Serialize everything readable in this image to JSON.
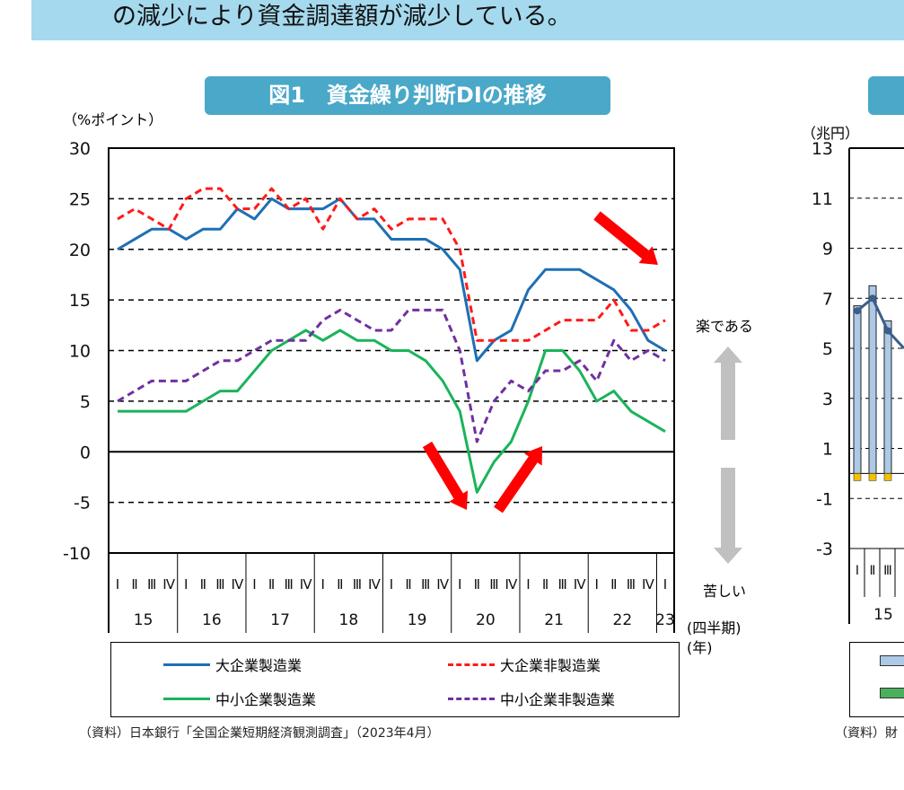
{
  "banner": {
    "text": "の減少により資金調達額が減少している。"
  },
  "chart_data": [
    {
      "type": "line",
      "title": "図1　資金繰り判断DIの推移",
      "ylabel": "（%ポイント）",
      "ylim": [
        -10,
        30
      ],
      "yticks": [
        30,
        25,
        20,
        15,
        10,
        5,
        0,
        -5,
        -10
      ],
      "grid": "horizontal dashed",
      "quarter_labels": [
        "Ⅰ",
        "Ⅱ",
        "Ⅲ",
        "Ⅳ"
      ],
      "year_labels": [
        "15",
        "16",
        "17",
        "18",
        "19",
        "20",
        "21",
        "22",
        "23"
      ],
      "xlabel_quarter": "(四半期)",
      "xlabel_year": "(年)",
      "annotation_up": "楽である",
      "annotation_down": "苦しい",
      "legend_position": "bottom",
      "series": [
        {
          "name": "大企業製造業",
          "color": "#1f6fb5",
          "style": "solid",
          "values": [
            20,
            21,
            22,
            22,
            21,
            22,
            22,
            24,
            23,
            25,
            24,
            24,
            24,
            25,
            23,
            23,
            21,
            21,
            21,
            20,
            18,
            9,
            11,
            12,
            16,
            18,
            18,
            18,
            17,
            16,
            14,
            11,
            10
          ]
        },
        {
          "name": "大企業非製造業",
          "color": "#ff1a1a",
          "style": "dashed",
          "values": [
            23,
            24,
            23,
            22,
            25,
            26,
            26,
            24,
            24,
            26,
            24,
            25,
            22,
            25,
            23,
            24,
            22,
            23,
            23,
            23,
            20,
            11,
            11,
            11,
            11,
            12,
            13,
            13,
            13,
            15,
            12,
            12,
            13
          ]
        },
        {
          "name": "中小企業製造業",
          "color": "#1ab45a",
          "style": "solid",
          "values": [
            4,
            4,
            4,
            4,
            4,
            5,
            6,
            6,
            8,
            10,
            11,
            12,
            11,
            12,
            11,
            11,
            10,
            10,
            9,
            7,
            4,
            -4,
            -1,
            1,
            5,
            10,
            10,
            8,
            5,
            6,
            4,
            3,
            2
          ]
        },
        {
          "name": "中小企業非製造業",
          "color": "#7030a0",
          "style": "dashed",
          "values": [
            5,
            6,
            7,
            7,
            7,
            8,
            9,
            9,
            10,
            11,
            11,
            11,
            13,
            14,
            13,
            12,
            12,
            14,
            14,
            14,
            10,
            1,
            5,
            7,
            6,
            8,
            8,
            9,
            7,
            11,
            9,
            10,
            9
          ]
        }
      ],
      "source": "（資料）日本銀行「全国企業短期経済観測調査」（2023年4月）"
    },
    {
      "type": "bar",
      "ylabel": "（兆円）",
      "ylim": [
        -3,
        13
      ],
      "yticks": [
        13,
        11,
        9,
        7,
        5,
        3,
        1,
        -1,
        -3
      ],
      "quarter_labels": [
        "Ⅰ",
        "Ⅱ",
        "Ⅲ"
      ],
      "year_labels": [
        "15"
      ],
      "bars": [
        6.7,
        7.5,
        6.1
      ],
      "line": [
        6.5,
        7.0,
        5.7
      ],
      "source": "（資料）財"
    }
  ],
  "colors": {
    "banner": "#a5d9ee",
    "title_bg": "#4aa8c8",
    "arrow": "#ff0000",
    "grey_arrow": "#c0c0c0"
  }
}
